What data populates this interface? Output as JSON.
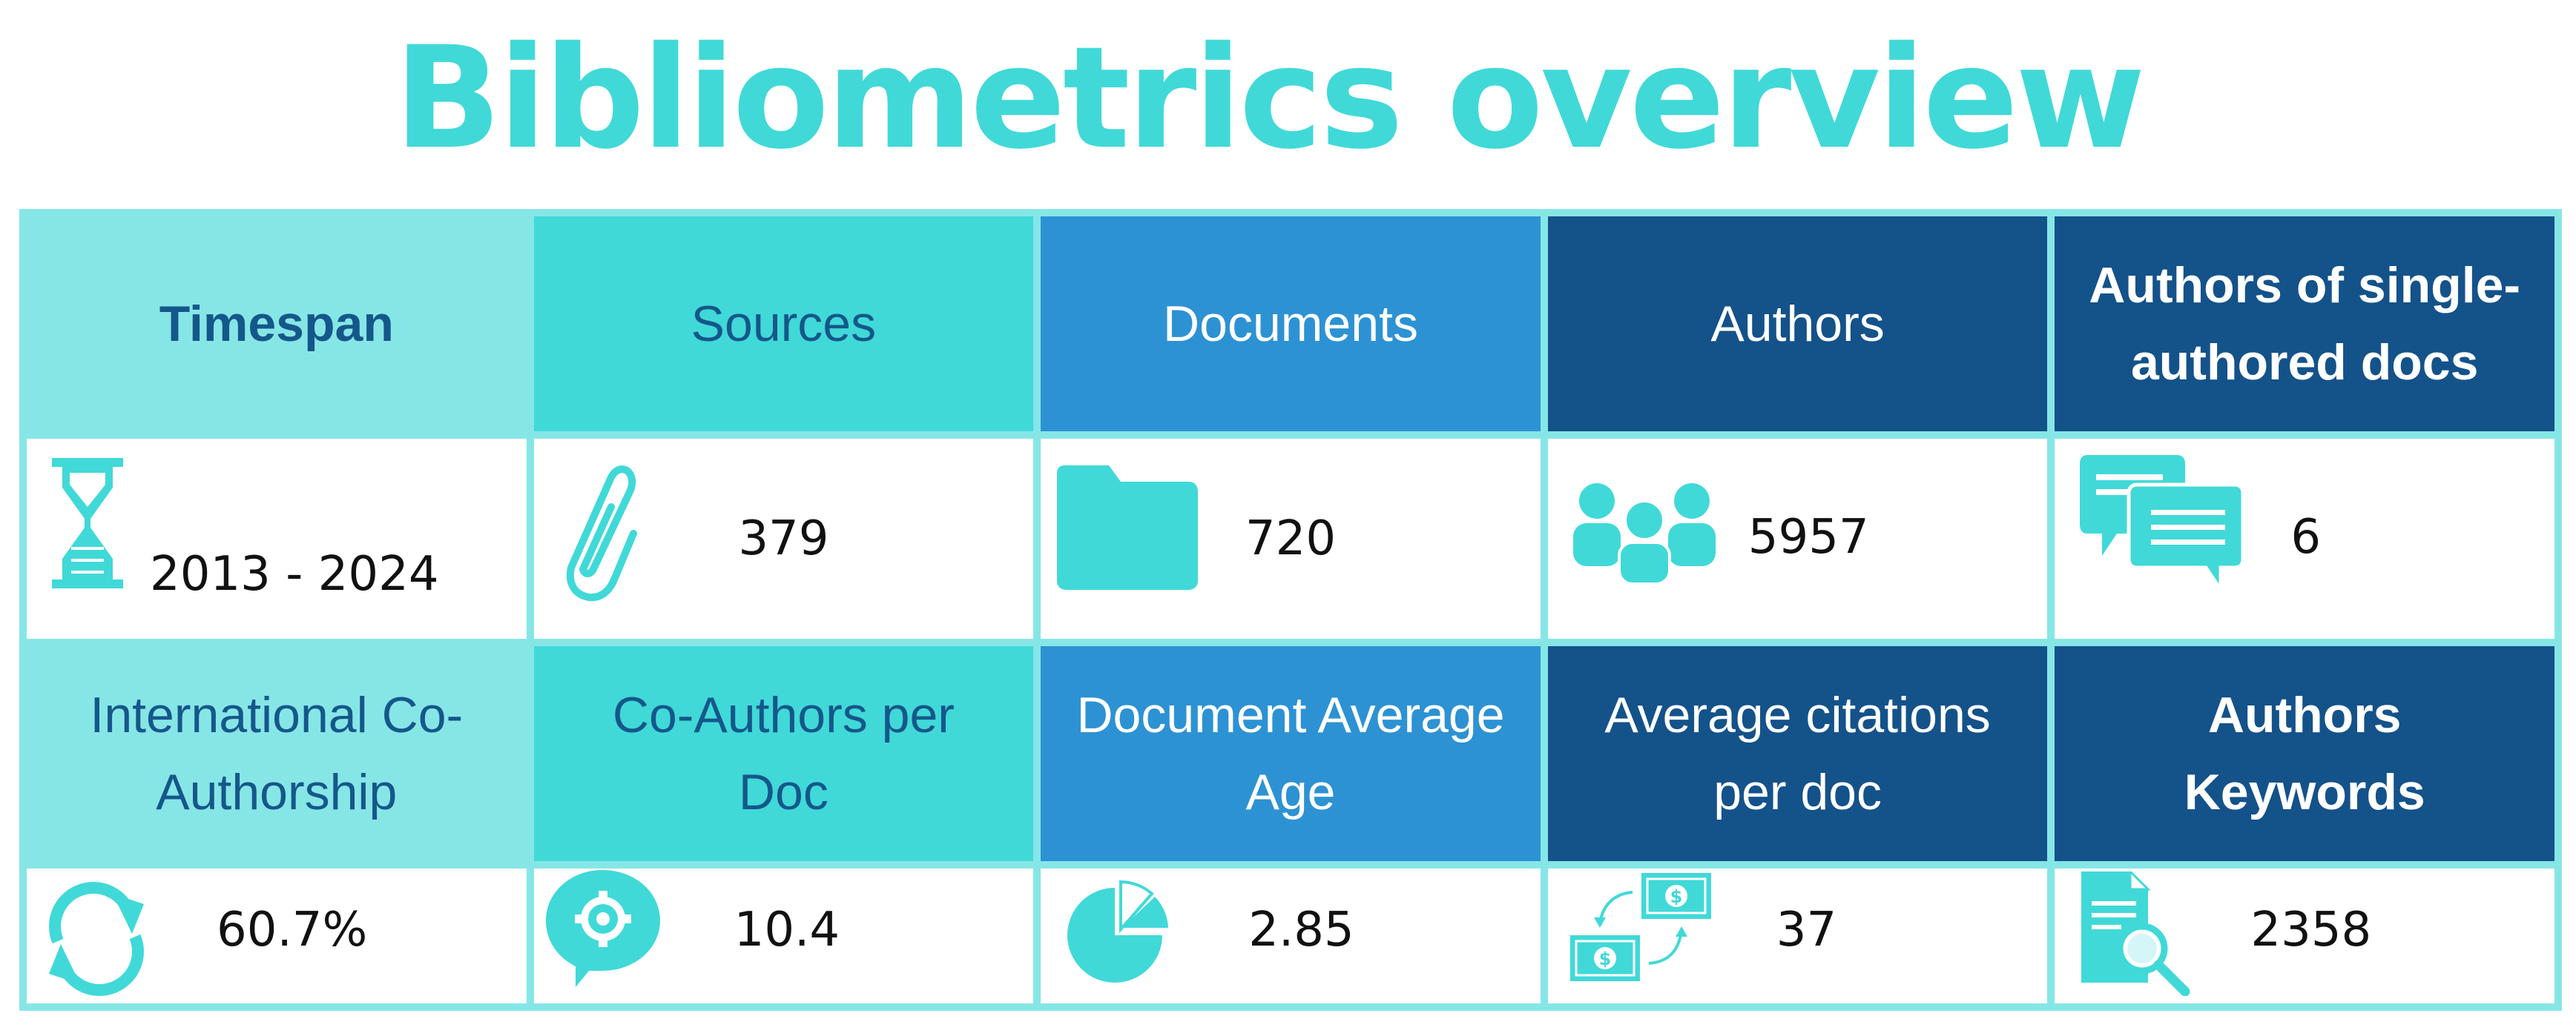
{
  "title": "Bibliometrics overview",
  "colors": {
    "accent": "#40d9d8",
    "light_teal": "#86e6e6",
    "mid_blue": "#2d92d3",
    "dark_blue": "#14528a",
    "label_dark": "#15578a"
  },
  "row1": {
    "timespan": {
      "label": "Timespan",
      "value": "2013 - 2024",
      "icon": "hourglass-icon"
    },
    "sources": {
      "label": "Sources",
      "value": "379",
      "icon": "paperclip-icon"
    },
    "documents": {
      "label": "Documents",
      "value": "720",
      "icon": "folder-icon"
    },
    "authors": {
      "label": "Authors",
      "value": "5957",
      "icon": "people-icon"
    },
    "single_authored": {
      "label": "Authors of single-authored docs",
      "value": "6",
      "icon": "chat-bubbles-icon"
    }
  },
  "row2": {
    "intl_coauthorship": {
      "label": "International Co-Authorship",
      "value": "60.7%",
      "icon": "refresh-arrows-icon"
    },
    "coauthors_per_doc": {
      "label": "Co-Authors per Doc",
      "value": "10.4",
      "icon": "gear-speech-icon"
    },
    "doc_avg_age": {
      "label": "Document Average Age",
      "value": "2.85",
      "icon": "pie-chart-icon"
    },
    "avg_citations": {
      "label": "Average citations per doc",
      "value": "37",
      "icon": "money-exchange-icon"
    },
    "author_keywords": {
      "label": "Authors Keywords",
      "value": "2358",
      "icon": "document-search-icon"
    }
  }
}
